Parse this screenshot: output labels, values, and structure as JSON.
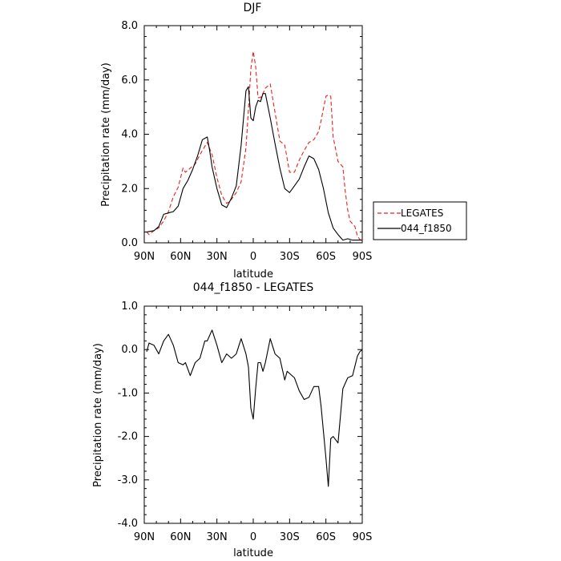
{
  "chart_data": [
    {
      "type": "line",
      "title": "DJF",
      "xlabel": "latitude",
      "ylabel": "Precipitation rate (mm/day)",
      "xlim": [
        -90,
        90
      ],
      "ylim": [
        0,
        8
      ],
      "x_ticks": [
        -90,
        -60,
        -30,
        0,
        30,
        60,
        90
      ],
      "x_tick_labels": [
        "90N",
        "60N",
        "30N",
        "0",
        "30S",
        "60S",
        "90S"
      ],
      "y_ticks": [
        0,
        2,
        4,
        6,
        8
      ],
      "y_tick_labels": [
        "0.0",
        "2.0",
        "4.0",
        "6.0",
        "8.0"
      ],
      "legend_position": "right",
      "series": [
        {
          "name": "LEGATES",
          "color": "#e8231d",
          "dash": "dashed",
          "x": [
            -88,
            -86,
            -82,
            -78,
            -74,
            -70,
            -66,
            -62,
            -58,
            -56,
            -52,
            -48,
            -44,
            -40,
            -38,
            -34,
            -30,
            -26,
            -22,
            -18,
            -14,
            -10,
            -6,
            -4,
            -2,
            0,
            2,
            4,
            6,
            8,
            10,
            14,
            18,
            22,
            26,
            30,
            34,
            38,
            42,
            46,
            50,
            54,
            56,
            60,
            62,
            64,
            66,
            70,
            74,
            76,
            78,
            80,
            84,
            86,
            88,
            90
          ],
          "y": [
            0.4,
            0.3,
            0.45,
            0.55,
            0.8,
            1.15,
            1.7,
            2.05,
            2.75,
            2.6,
            2.75,
            2.9,
            3.25,
            3.55,
            3.7,
            3.25,
            2.4,
            1.75,
            1.45,
            1.6,
            1.85,
            2.25,
            3.5,
            4.9,
            6.4,
            7.05,
            6.5,
            5.35,
            5.35,
            5.5,
            5.7,
            5.85,
            4.8,
            3.75,
            3.6,
            2.6,
            2.6,
            3.05,
            3.4,
            3.7,
            3.8,
            4.1,
            4.5,
            5.4,
            5.45,
            5.4,
            3.9,
            3.0,
            2.8,
            1.9,
            1.2,
            0.8,
            0.6,
            0.25,
            0.12,
            0.1
          ]
        },
        {
          "name": "044_f1850",
          "color": "#000000",
          "dash": "solid",
          "x": [
            -88,
            -82,
            -78,
            -74,
            -70,
            -66,
            -62,
            -58,
            -54,
            -50,
            -46,
            -42,
            -38,
            -36,
            -34,
            -30,
            -26,
            -22,
            -18,
            -14,
            -10,
            -6,
            -4,
            -2,
            0,
            2,
            4,
            6,
            8,
            10,
            14,
            18,
            22,
            26,
            30,
            34,
            38,
            42,
            46,
            50,
            54,
            58,
            62,
            66,
            70,
            74,
            78,
            82,
            86,
            90
          ],
          "y": [
            0.4,
            0.45,
            0.6,
            1.05,
            1.1,
            1.15,
            1.35,
            2.0,
            2.3,
            2.7,
            3.2,
            3.8,
            3.9,
            3.4,
            2.8,
            2.0,
            1.4,
            1.3,
            1.65,
            2.1,
            3.6,
            5.6,
            5.75,
            4.6,
            4.5,
            5.0,
            5.25,
            5.2,
            5.5,
            5.5,
            4.6,
            3.65,
            2.75,
            2.0,
            1.85,
            2.1,
            2.35,
            2.8,
            3.2,
            3.1,
            2.7,
            2.0,
            1.1,
            0.55,
            0.3,
            0.1,
            0.15,
            0.1,
            0.1,
            0.1
          ]
        }
      ]
    },
    {
      "type": "line",
      "title": "044_f1850 - LEGATES",
      "xlabel": "latitude",
      "ylabel": "Precipitation rate (mm/day)",
      "xlim": [
        -90,
        90
      ],
      "ylim": [
        -4,
        1
      ],
      "x_ticks": [
        -90,
        -60,
        -30,
        0,
        30,
        60,
        90
      ],
      "x_tick_labels": [
        "90N",
        "60N",
        "30N",
        "0",
        "30S",
        "60S",
        "90S"
      ],
      "y_ticks": [
        -4,
        -3,
        -2,
        -1,
        0,
        1
      ],
      "y_tick_labels": [
        "-4.0",
        "-3.0",
        "-2.0",
        "-1.0",
        "0.0",
        "1.0"
      ],
      "series": [
        {
          "color": "#000000",
          "dash": "solid",
          "x": [
            -88,
            -86,
            -82,
            -78,
            -74,
            -70,
            -66,
            -62,
            -58,
            -56,
            -52,
            -48,
            -44,
            -40,
            -38,
            -34,
            -30,
            -26,
            -22,
            -18,
            -14,
            -10,
            -6,
            -4,
            -2,
            0,
            2,
            4,
            6,
            8,
            10,
            14,
            18,
            22,
            26,
            28,
            30,
            34,
            38,
            42,
            46,
            50,
            54,
            56,
            60,
            62,
            64,
            66,
            70,
            74,
            78,
            82,
            86,
            88,
            90
          ],
          "y": [
            -0.05,
            0.15,
            0.1,
            -0.1,
            0.2,
            0.35,
            0.1,
            -0.3,
            -0.35,
            -0.3,
            -0.6,
            -0.3,
            -0.2,
            0.2,
            0.2,
            0.45,
            0.1,
            -0.3,
            -0.1,
            -0.2,
            -0.1,
            0.25,
            -0.1,
            -0.4,
            -1.35,
            -1.6,
            -0.9,
            -0.3,
            -0.3,
            -0.5,
            -0.3,
            0.25,
            -0.1,
            -0.2,
            -0.7,
            -0.5,
            -0.55,
            -0.65,
            -0.95,
            -1.15,
            -1.1,
            -0.85,
            -0.85,
            -1.3,
            -2.5,
            -3.15,
            -2.05,
            -2.0,
            -2.15,
            -0.9,
            -0.65,
            -0.6,
            -0.15,
            -0.05,
            0.0
          ]
        }
      ]
    }
  ]
}
